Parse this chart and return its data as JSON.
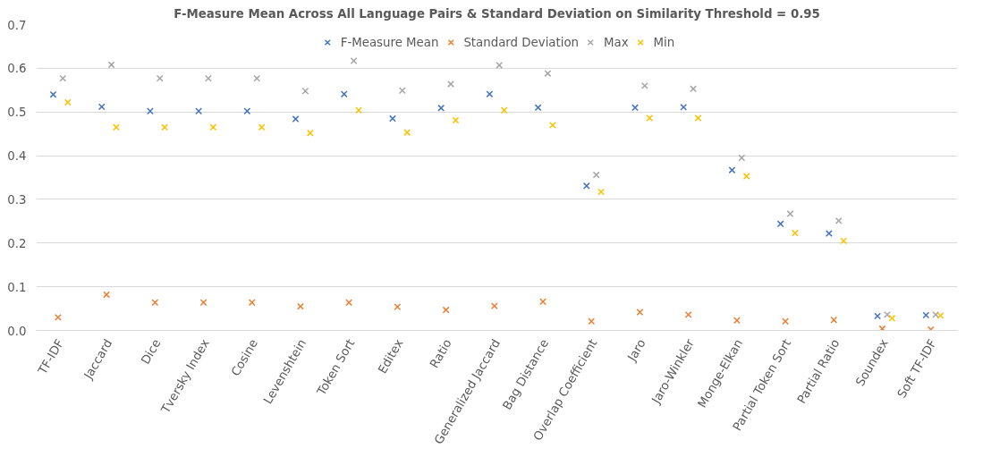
{
  "chart_data": {
    "type": "scatter",
    "title": "F-Measure Mean Across All Language Pairs & Standard Deviation on Similarity Threshold = 0.95",
    "categories": [
      "TF-IDF",
      "Jaccard",
      "Dice",
      "Tversky Index",
      "Cosine",
      "Levenshtein",
      "Token Sort",
      "Editex",
      "Ratio",
      "Generalized Jaccard",
      "Bag Distance",
      "Overlap Coefficient",
      "Jaro",
      "Jaro-Winkler",
      "Monge-Elkan",
      "Partial Token Sort",
      "Partial Ratio",
      "Soundex",
      "Soft TF-IDF"
    ],
    "series": [
      {
        "name": "F-Measure Mean",
        "color": "#4472c4",
        "values": [
          0.54,
          0.512,
          0.502,
          0.502,
          0.502,
          0.484,
          0.541,
          0.485,
          0.509,
          0.541,
          0.51,
          0.331,
          0.51,
          0.511,
          0.367,
          0.244,
          0.222,
          0.033,
          0.035
        ]
      },
      {
        "name": "Standard Deviation",
        "color": "#ed7d31",
        "values": [
          0.03,
          0.082,
          0.064,
          0.064,
          0.064,
          0.055,
          0.064,
          0.054,
          0.047,
          0.056,
          0.066,
          0.021,
          0.042,
          0.036,
          0.023,
          0.021,
          0.024,
          0.004,
          0.002
        ]
      },
      {
        "name": "Max",
        "color": "#a5a5a5",
        "values": [
          0.577,
          0.608,
          0.577,
          0.577,
          0.577,
          0.548,
          0.617,
          0.549,
          0.564,
          0.607,
          0.588,
          0.356,
          0.56,
          0.553,
          0.395,
          0.267,
          0.251,
          0.036,
          0.036
        ]
      },
      {
        "name": "Min",
        "color": "#ffc000",
        "values": [
          0.522,
          0.465,
          0.465,
          0.465,
          0.465,
          0.452,
          0.504,
          0.453,
          0.481,
          0.504,
          0.47,
          0.317,
          0.486,
          0.486,
          0.353,
          0.223,
          0.205,
          0.028,
          0.034
        ]
      }
    ],
    "ylim": [
      0,
      0.7
    ],
    "yticks": [
      {
        "value": 0,
        "label": "0.0"
      },
      0.1,
      0.2,
      0.3,
      0.4,
      0.5,
      0.6,
      0.7
    ],
    "grid": "y",
    "legend": "top",
    "marker": "cross"
  }
}
